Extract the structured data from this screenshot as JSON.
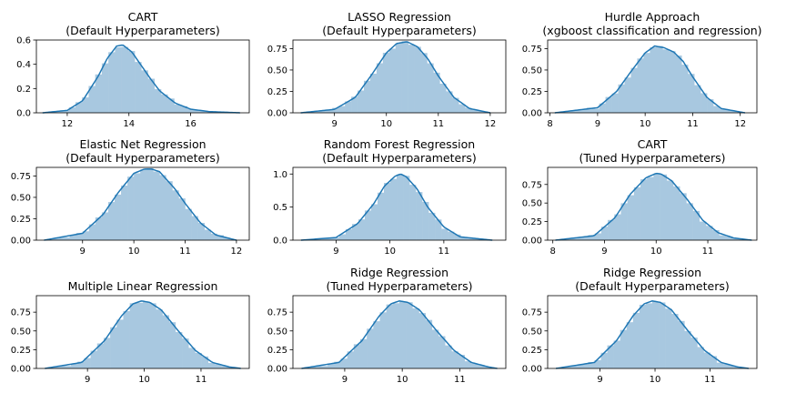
{
  "chart_data": [
    {
      "type": "area",
      "title": [
        "CART",
        "(Default Hyperparameters)"
      ],
      "xlim": [
        11,
        17.9
      ],
      "ylim": [
        0,
        0.6
      ],
      "xticks": [
        12,
        14,
        16
      ],
      "yticks": [
        0.0,
        0.2,
        0.4,
        0.6
      ],
      "ytick_labels": [
        "0.0",
        "0.2",
        "0.4",
        "0.6"
      ],
      "mean": 13.7,
      "sd": 0.7,
      "kde": {
        "x": [
          11.2,
          12.0,
          12.5,
          13.0,
          13.3,
          13.6,
          13.8,
          14.1,
          14.4,
          14.7,
          15.0,
          15.5,
          16.0,
          16.6,
          17.6
        ],
        "y": [
          0.0,
          0.02,
          0.1,
          0.3,
          0.45,
          0.55,
          0.56,
          0.5,
          0.39,
          0.28,
          0.18,
          0.08,
          0.03,
          0.01,
          0.0
        ]
      }
    },
    {
      "type": "area",
      "title": [
        "LASSO Regression",
        "(Default Hyperparameters)"
      ],
      "xlim": [
        8.2,
        12.3
      ],
      "ylim": [
        0,
        0.85
      ],
      "xticks": [
        9,
        10,
        11,
        12
      ],
      "yticks": [
        0.0,
        0.25,
        0.5,
        0.75
      ],
      "ytick_labels": [
        "0.00",
        "0.25",
        "0.50",
        "0.75"
      ],
      "mean": 10.35,
      "sd": 0.48,
      "kde": {
        "x": [
          8.35,
          9.0,
          9.4,
          9.7,
          10.0,
          10.2,
          10.4,
          10.6,
          10.8,
          11.0,
          11.3,
          11.6,
          12.0
        ],
        "y": [
          0.0,
          0.04,
          0.18,
          0.43,
          0.7,
          0.81,
          0.83,
          0.77,
          0.63,
          0.43,
          0.18,
          0.05,
          0.0
        ]
      }
    },
    {
      "type": "area",
      "title": [
        "Hurdle Approach",
        "(xgboost classification and regression)"
      ],
      "xlim": [
        7.95,
        12.35
      ],
      "ylim": [
        0,
        0.85
      ],
      "xticks": [
        8,
        9,
        10,
        11,
        12
      ],
      "yticks": [
        0.0,
        0.25,
        0.5,
        0.75
      ],
      "ytick_labels": [
        "0.00",
        "0.25",
        "0.50",
        "0.75"
      ],
      "mean": 10.3,
      "sd": 0.5,
      "kde": {
        "x": [
          8.1,
          9.0,
          9.4,
          9.7,
          10.0,
          10.2,
          10.4,
          10.6,
          10.8,
          11.0,
          11.3,
          11.6,
          12.1
        ],
        "y": [
          0.0,
          0.06,
          0.25,
          0.48,
          0.7,
          0.78,
          0.76,
          0.71,
          0.6,
          0.42,
          0.18,
          0.05,
          0.0
        ]
      }
    },
    {
      "type": "area",
      "title": [
        "Elastic Net Regression",
        "(Default Hyperparameters)"
      ],
      "xlim": [
        8.1,
        12.25
      ],
      "ylim": [
        0,
        0.85
      ],
      "xticks": [
        9,
        10,
        11,
        12
      ],
      "yticks": [
        0.0,
        0.25,
        0.5,
        0.75
      ],
      "ytick_labels": [
        "0.00",
        "0.25",
        "0.50",
        "0.75"
      ],
      "mean": 10.25,
      "sd": 0.48,
      "kde": {
        "x": [
          8.25,
          9.0,
          9.4,
          9.7,
          10.0,
          10.2,
          10.35,
          10.5,
          10.8,
          11.0,
          11.3,
          11.6,
          12.0
        ],
        "y": [
          0.0,
          0.08,
          0.3,
          0.56,
          0.78,
          0.83,
          0.83,
          0.8,
          0.6,
          0.43,
          0.2,
          0.06,
          0.0
        ]
      }
    },
    {
      "type": "area",
      "title": [
        "Random Forest Regression",
        "(Default Hyperparameters)"
      ],
      "xlim": [
        8.2,
        12.15
      ],
      "ylim": [
        0,
        1.1
      ],
      "xticks": [
        9,
        10,
        11
      ],
      "yticks": [
        0.0,
        0.5,
        1.0
      ],
      "ytick_labels": [
        "0.0",
        "0.5",
        "1.0"
      ],
      "mean": 10.2,
      "sd": 0.4,
      "kde": {
        "x": [
          8.35,
          9.0,
          9.4,
          9.7,
          9.9,
          10.1,
          10.2,
          10.3,
          10.5,
          10.7,
          11.0,
          11.3,
          11.9
        ],
        "y": [
          0.0,
          0.04,
          0.25,
          0.55,
          0.82,
          0.97,
          1.0,
          0.96,
          0.78,
          0.5,
          0.2,
          0.05,
          0.0
        ]
      }
    },
    {
      "type": "area",
      "title": [
        "CART",
        "(Tuned Hyperparameters)"
      ],
      "xlim": [
        7.9,
        11.95
      ],
      "ylim": [
        0,
        0.98
      ],
      "xticks": [
        8,
        9,
        10,
        11
      ],
      "yticks": [
        0.0,
        0.25,
        0.5,
        0.75
      ],
      "ytick_labels": [
        "0.00",
        "0.25",
        "0.50",
        "0.75"
      ],
      "mean": 10.0,
      "sd": 0.45,
      "kde": {
        "x": [
          8.05,
          8.8,
          9.2,
          9.5,
          9.8,
          10.0,
          10.1,
          10.3,
          10.6,
          10.9,
          11.2,
          11.5,
          11.85
        ],
        "y": [
          0.0,
          0.06,
          0.3,
          0.62,
          0.84,
          0.9,
          0.89,
          0.8,
          0.55,
          0.27,
          0.1,
          0.03,
          0.0
        ]
      }
    },
    {
      "type": "area",
      "title": [
        "Multiple Linear Regression"
      ],
      "xlim": [
        8.1,
        11.85
      ],
      "ylim": [
        0,
        0.97
      ],
      "xticks": [
        9,
        10,
        11
      ],
      "yticks": [
        0.0,
        0.25,
        0.5,
        0.75
      ],
      "ytick_labels": [
        "0.00",
        "0.25",
        "0.50",
        "0.75"
      ],
      "mean": 9.95,
      "sd": 0.45,
      "kde": {
        "x": [
          8.25,
          8.9,
          9.3,
          9.6,
          9.8,
          9.95,
          10.1,
          10.3,
          10.6,
          10.9,
          11.2,
          11.5,
          11.7
        ],
        "y": [
          0.0,
          0.08,
          0.37,
          0.7,
          0.86,
          0.9,
          0.88,
          0.78,
          0.5,
          0.24,
          0.08,
          0.02,
          0.0
        ]
      }
    },
    {
      "type": "area",
      "title": [
        "Ridge Regression",
        "(Tuned Hyperparameters)"
      ],
      "xlim": [
        8.1,
        11.8
      ],
      "ylim": [
        0,
        0.97
      ],
      "xticks": [
        9,
        10,
        11
      ],
      "yticks": [
        0.0,
        0.25,
        0.5,
        0.75
      ],
      "ytick_labels": [
        "0.00",
        "0.25",
        "0.50",
        "0.75"
      ],
      "mean": 9.9,
      "sd": 0.45,
      "kde": {
        "x": [
          8.25,
          8.9,
          9.3,
          9.6,
          9.8,
          9.95,
          10.1,
          10.3,
          10.6,
          10.9,
          11.2,
          11.5,
          11.65
        ],
        "y": [
          0.0,
          0.08,
          0.37,
          0.7,
          0.86,
          0.9,
          0.88,
          0.78,
          0.5,
          0.24,
          0.08,
          0.02,
          0.0
        ]
      }
    },
    {
      "type": "area",
      "title": [
        "Ridge Regression",
        "(Default Hyperparameters)"
      ],
      "xlim": [
        8.05,
        11.85
      ],
      "ylim": [
        0,
        0.97
      ],
      "xticks": [
        9,
        10,
        11
      ],
      "yticks": [
        0.0,
        0.25,
        0.5,
        0.75
      ],
      "ytick_labels": [
        "0.00",
        "0.25",
        "0.50",
        "0.75"
      ],
      "mean": 9.9,
      "sd": 0.45,
      "kde": {
        "x": [
          8.2,
          8.9,
          9.3,
          9.6,
          9.8,
          9.95,
          10.1,
          10.3,
          10.6,
          10.9,
          11.2,
          11.5,
          11.7
        ],
        "y": [
          0.0,
          0.08,
          0.37,
          0.7,
          0.86,
          0.9,
          0.88,
          0.78,
          0.5,
          0.24,
          0.08,
          0.02,
          0.0
        ]
      }
    }
  ],
  "colors": {
    "hist_fill": "#a8c8e0",
    "kde_line": "#1f77b4",
    "axes": "#000000"
  }
}
